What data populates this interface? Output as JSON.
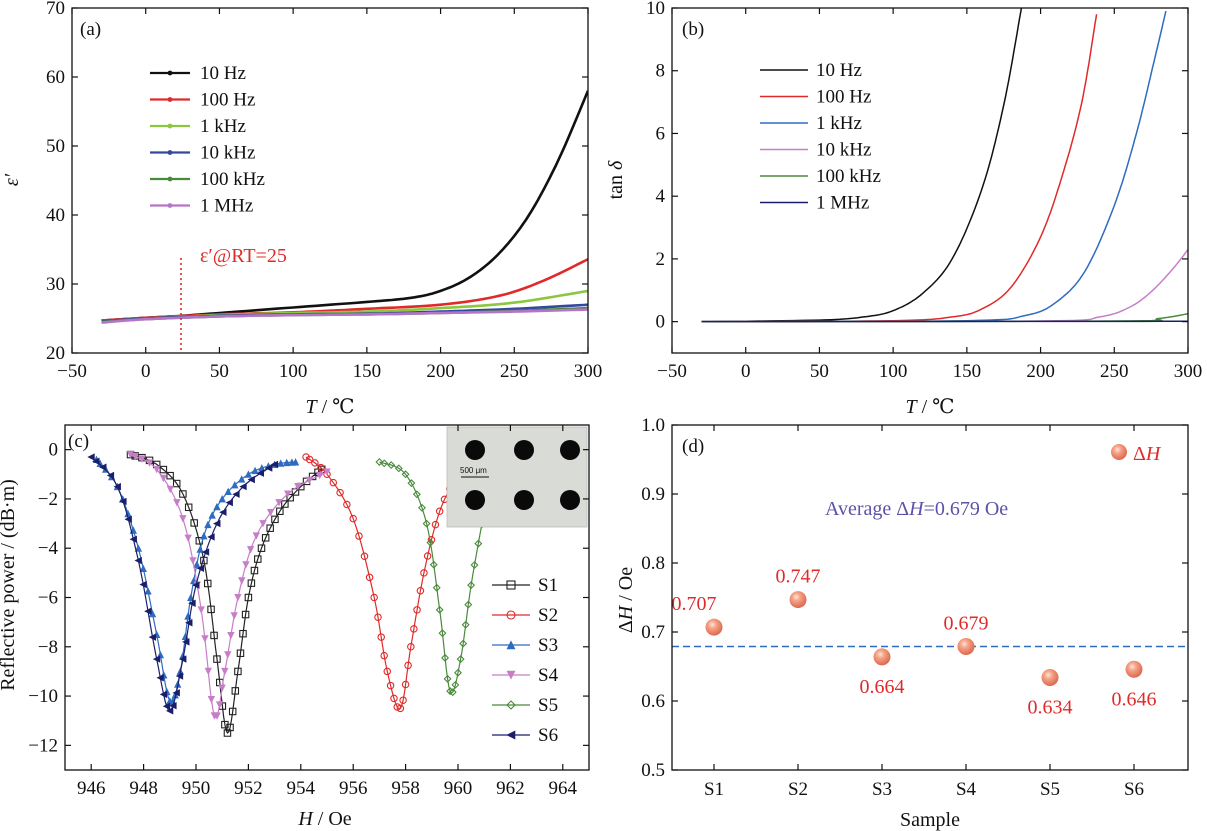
{
  "chart_data": [
    {
      "panel": "(a)",
      "type": "line",
      "xlabel_var": "T",
      "xlabel_unit": " / ℃",
      "ylabel": "ε′",
      "xlim": [
        -50,
        300
      ],
      "ylim": [
        20,
        70
      ],
      "xticks": [
        "−50",
        "0",
        "50",
        "100",
        "150",
        "200",
        "250",
        "300"
      ],
      "yticks": [
        "20",
        "30",
        "40",
        "50",
        "60",
        "70"
      ],
      "annotation": "ε′@RT=25",
      "vline_x": 25,
      "series": [
        {
          "name": "10 Hz",
          "color": "#111111",
          "x": [
            -30,
            0,
            25,
            50,
            100,
            150,
            180,
            200,
            220,
            240,
            260,
            280,
            300
          ],
          "y": [
            24.7,
            25.1,
            25.4,
            25.8,
            26.6,
            27.4,
            28.0,
            29.0,
            31.0,
            34.5,
            40.0,
            48.0,
            58.0
          ]
        },
        {
          "name": "100 Hz",
          "color": "#e02a2a",
          "x": [
            -30,
            0,
            50,
            100,
            150,
            200,
            240,
            270,
            300
          ],
          "y": [
            24.7,
            25.1,
            25.6,
            25.9,
            26.4,
            27.0,
            28.3,
            30.5,
            33.6
          ]
        },
        {
          "name": "1 kHz",
          "color": "#8dc63f",
          "x": [
            -30,
            0,
            50,
            100,
            150,
            200,
            250,
            300
          ],
          "y": [
            24.6,
            25.0,
            25.5,
            25.8,
            26.0,
            26.5,
            27.3,
            29.0
          ]
        },
        {
          "name": "10 kHz",
          "color": "#3548a0",
          "x": [
            -30,
            0,
            50,
            100,
            150,
            200,
            250,
            300
          ],
          "y": [
            24.6,
            25.0,
            25.4,
            25.6,
            25.7,
            26.0,
            26.4,
            27.0
          ]
        },
        {
          "name": "100 kHz",
          "color": "#4a8a3c",
          "x": [
            -30,
            0,
            50,
            100,
            150,
            200,
            250,
            300
          ],
          "y": [
            24.5,
            24.9,
            25.3,
            25.5,
            25.6,
            25.8,
            26.1,
            26.5
          ]
        },
        {
          "name": "1 MHz",
          "color": "#b674c8",
          "x": [
            -30,
            0,
            50,
            100,
            150,
            200,
            250,
            300
          ],
          "y": [
            24.4,
            24.9,
            25.3,
            25.5,
            25.6,
            25.8,
            26.0,
            26.3
          ]
        }
      ]
    },
    {
      "panel": "(b)",
      "type": "line",
      "xlabel_var": "T",
      "xlabel_unit": " / ℃",
      "ylabel_prefix": "tan ",
      "ylabel_var": "δ",
      "xlim": [
        -50,
        300
      ],
      "ylim": [
        -1,
        10
      ],
      "xticks": [
        "−50",
        "0",
        "50",
        "100",
        "150",
        "200",
        "250",
        "300"
      ],
      "yticks": [
        "0",
        "2",
        "4",
        "6",
        "8",
        "10"
      ],
      "series": [
        {
          "name": "10 Hz",
          "color": "#111111",
          "x": [
            -30,
            50,
            80,
            100,
            120,
            140,
            160,
            175,
            187
          ],
          "y": [
            0,
            0.05,
            0.15,
            0.35,
            0.9,
            2.0,
            4.2,
            6.9,
            10.0
          ]
        },
        {
          "name": "100 Hz",
          "color": "#e02a2a",
          "x": [
            -30,
            100,
            140,
            160,
            180,
            200,
            215,
            228,
            238
          ],
          "y": [
            0,
            0.03,
            0.15,
            0.4,
            1.1,
            2.7,
            4.7,
            7.0,
            9.8
          ]
        },
        {
          "name": "1 kHz",
          "color": "#2f6bc0",
          "x": [
            -30,
            150,
            190,
            210,
            230,
            250,
            265,
            277,
            285
          ],
          "y": [
            0,
            0.03,
            0.2,
            0.6,
            1.6,
            3.7,
            6.0,
            8.3,
            9.9
          ]
        },
        {
          "name": "10 kHz",
          "color": "#c77ec8",
          "x": [
            -30,
            200,
            240,
            260,
            275,
            290,
            300
          ],
          "y": [
            0,
            0.02,
            0.15,
            0.45,
            0.95,
            1.7,
            2.3
          ]
        },
        {
          "name": "100 kHz",
          "color": "#4a8a3c",
          "x": [
            -30,
            250,
            280,
            300
          ],
          "y": [
            0,
            0.02,
            0.1,
            0.25
          ]
        },
        {
          "name": "1 MHz",
          "color": "#1b1f6b",
          "x": [
            -30,
            300
          ],
          "y": [
            0,
            0.01
          ]
        }
      ]
    },
    {
      "panel": "(c)",
      "type": "line",
      "xlabel_var": "H",
      "xlabel_unit": " / Oe",
      "ylabel": "Reflective power / (dB·m)",
      "xlim": [
        945,
        965
      ],
      "ylim": [
        -13,
        1
      ],
      "xticks": [
        "946",
        "948",
        "950",
        "952",
        "954",
        "956",
        "958",
        "960",
        "962",
        "964"
      ],
      "yticks": [
        "−12",
        "−10",
        "−8",
        "−6",
        "−4",
        "−2",
        "0"
      ],
      "inset_scale": "500 μm",
      "series": [
        {
          "name": "S1",
          "color": "#222222",
          "marker": "square",
          "x": [
            947.5,
            948.5,
            949.5,
            950.3,
            950.8,
            951.2,
            951.6,
            952.0,
            952.5,
            953.2,
            954.0,
            954.8
          ],
          "y": [
            -0.2,
            -0.6,
            -1.8,
            -4.5,
            -8.5,
            -11.5,
            -9.0,
            -6.0,
            -4.0,
            -2.5,
            -1.5,
            -0.8
          ]
        },
        {
          "name": "S2",
          "color": "#e02a2a",
          "marker": "circle",
          "x": [
            954.2,
            955.0,
            956.0,
            956.8,
            957.3,
            957.8,
            958.2,
            958.7,
            959.3,
            960.0
          ],
          "y": [
            -0.3,
            -1.0,
            -2.8,
            -6.0,
            -9.0,
            -10.5,
            -8.0,
            -5.0,
            -2.5,
            -1.0
          ]
        },
        {
          "name": "S3",
          "color": "#2f6bc0",
          "marker": "triangle-up",
          "x": [
            946.2,
            947.0,
            947.8,
            948.5,
            949.0,
            949.4,
            949.8,
            950.3,
            951.0,
            952.0,
            953.0,
            953.8
          ],
          "y": [
            -0.4,
            -1.5,
            -4.0,
            -7.5,
            -10.2,
            -9.0,
            -6.0,
            -3.5,
            -2.0,
            -1.0,
            -0.6,
            -0.5
          ]
        },
        {
          "name": "S4",
          "color": "#c77ec8",
          "marker": "triangle-down",
          "x": [
            947.5,
            948.5,
            949.5,
            950.2,
            950.7,
            951.1,
            951.6,
            952.3,
            953.5,
            955.0
          ],
          "y": [
            -0.2,
            -0.8,
            -2.8,
            -6.5,
            -10.8,
            -9.0,
            -6.0,
            -3.5,
            -1.8,
            -0.9
          ]
        },
        {
          "name": "S5",
          "color": "#4a8a3c",
          "marker": "diamond",
          "x": [
            957.0,
            958.0,
            958.8,
            959.3,
            959.7,
            960.1,
            960.5,
            961.0
          ],
          "y": [
            -0.5,
            -1.0,
            -3.0,
            -6.5,
            -9.8,
            -8.5,
            -5.5,
            -2.5
          ]
        },
        {
          "name": "S6",
          "color": "#1b1f6b",
          "marker": "triangle-left",
          "x": [
            946.0,
            947.0,
            947.8,
            948.5,
            949.0,
            949.5,
            950.0,
            950.8,
            951.8,
            953.0
          ],
          "y": [
            -0.3,
            -1.5,
            -4.5,
            -8.5,
            -10.6,
            -8.5,
            -5.5,
            -3.0,
            -1.5,
            -0.6
          ]
        }
      ]
    },
    {
      "panel": "(d)",
      "type": "scatter",
      "xlabel": "Sample",
      "ylabel_prefix": "Δ",
      "ylabel_var": "H",
      "ylabel_suffix": " / Oe",
      "categories": [
        "S1",
        "S2",
        "S3",
        "S4",
        "S5",
        "S6"
      ],
      "ylim": [
        0.5,
        1.0
      ],
      "yticks": [
        "0.5",
        "0.6",
        "0.7",
        "0.8",
        "0.9",
        "1.0"
      ],
      "values": [
        0.707,
        0.747,
        0.664,
        0.679,
        0.634,
        0.646
      ],
      "value_labels": [
        "0.707",
        "0.747",
        "0.664",
        "0.679",
        "0.634",
        "0.646"
      ],
      "average": 0.679,
      "average_prefix": "Average  Δ",
      "average_var": "H",
      "average_suffix": "=0.679 Oe",
      "legend_prefix": "Δ",
      "legend_var": "H",
      "colors": {
        "point": "#f0876a",
        "label": "#e02a2a",
        "avgline": "#2f6bc0",
        "avgtext": "#5b53a6"
      }
    }
  ]
}
